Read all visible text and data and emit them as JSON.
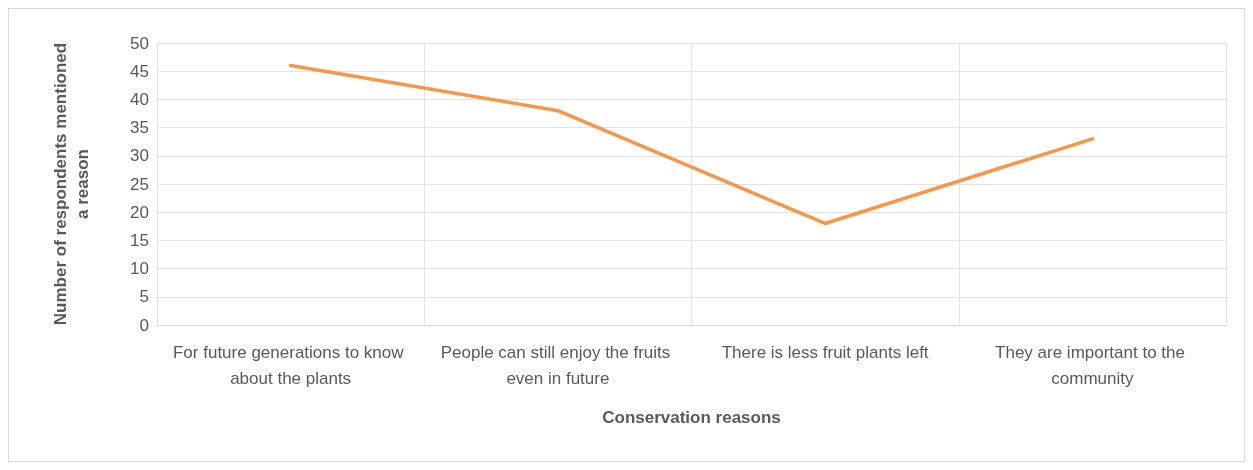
{
  "chart_data": {
    "type": "line",
    "xlabel": "Conservation reasons",
    "ylabel": "Number of respondents mentioned a reason",
    "categories": [
      "For future generations to know about the plants",
      "People can still enjoy the fruits even in future",
      "There is less fruit plants left",
      "They are important to the community"
    ],
    "series": [
      {
        "color": "#f79646",
        "values": [
          46,
          38,
          18,
          33
        ]
      }
    ],
    "ylim": [
      0,
      50
    ],
    "yticks": [
      0,
      5,
      10,
      15,
      20,
      25,
      30,
      35,
      40,
      45,
      50
    ],
    "grid": true,
    "marker": "none",
    "line_style": "solid"
  }
}
